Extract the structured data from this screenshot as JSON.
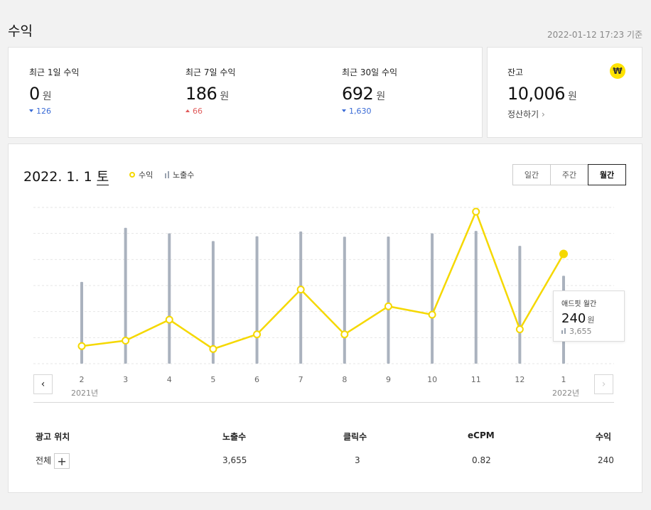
{
  "header": {
    "title": "수익",
    "timestamp": "2022-01-12 17:23 기준"
  },
  "summary": [
    {
      "label": "최근 1일 수익",
      "value": "0",
      "unit": "원",
      "delta": "126",
      "direction": "down"
    },
    {
      "label": "최근 7일 수익",
      "value": "186",
      "unit": "원",
      "delta": "66",
      "direction": "up"
    },
    {
      "label": "최근 30일 수익",
      "value": "692",
      "unit": "원",
      "delta": "1,630",
      "direction": "down"
    }
  ],
  "balance": {
    "label": "잔고",
    "value": "10,006",
    "unit": "원",
    "settle_label": "정산하기",
    "coin_symbol": "₩"
  },
  "chart_header": {
    "date": "2022. 1. 1",
    "day": "토",
    "legend_revenue": "수익",
    "legend_impressions": "노출수"
  },
  "period_tabs": {
    "daily": "일간",
    "weekly": "주간",
    "monthly": "월간",
    "active": "monthly"
  },
  "tooltip": {
    "title": "애드핏 월간",
    "value": "240",
    "unit": "원",
    "impressions": "3,655"
  },
  "chart_data": {
    "type": "bar+line",
    "categories": [
      "2",
      "3",
      "4",
      "5",
      "6",
      "7",
      "8",
      "9",
      "10",
      "11",
      "12",
      "1"
    ],
    "year_labels": {
      "first": "2021년",
      "last": "2022년"
    },
    "series": [
      {
        "name": "노출수",
        "type": "bar",
        "values": [
          3400,
          5650,
          5420,
          5100,
          5300,
          5500,
          5280,
          5290,
          5420,
          5520,
          4900,
          3655
        ]
      },
      {
        "name": "수익",
        "type": "line",
        "values": [
          20,
          33,
          83,
          13,
          48,
          155,
          48,
          115,
          95,
          341,
          60,
          240
        ]
      }
    ],
    "bar_ylim": [
      0,
      6500
    ],
    "line_ylim": [
      0,
      2000
    ],
    "colors": {
      "line": "#f5d800",
      "bar": "#aab2be",
      "grid": "#e6e6e6"
    }
  },
  "table": {
    "headers": [
      "광고 위치",
      "노출수",
      "클릭수",
      "eCPM",
      "수익"
    ],
    "row": {
      "position": "전체",
      "impressions": "3,655",
      "clicks": "3",
      "ecpm": "0.82",
      "revenue": "240"
    }
  }
}
